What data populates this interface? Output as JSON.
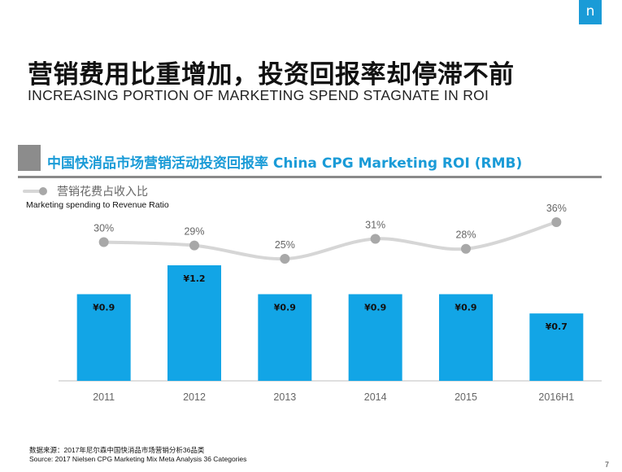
{
  "logo": {
    "letter": "n"
  },
  "title": {
    "cn": "营销费用比重增加，投资回报率却停滞不前",
    "en": "INCREASING PORTION OF MARKETING SPEND STAGNATE IN ROI"
  },
  "section": {
    "title": "中国快消品市场营销活动投资回报率  China CPG Marketing ROI (RMB)"
  },
  "legend": {
    "cn": "营销花费占收入比",
    "en": "Marketing spending to Revenue Ratio"
  },
  "chart_data": {
    "type": "bar",
    "title": "中国快消品市场营销活动投资回报率 China CPG Marketing ROI (RMB)",
    "categories": [
      "2011",
      "2012",
      "2013",
      "2014",
      "2015",
      "2016H1"
    ],
    "series": [
      {
        "name": "ROI (RMB)",
        "type": "bar",
        "values": [
          0.9,
          1.2,
          0.9,
          0.9,
          0.9,
          0.7
        ],
        "labels": [
          "¥0.9",
          "¥1.2",
          "¥0.9",
          "¥0.9",
          "¥0.9",
          "¥0.7"
        ],
        "color": "#12a5e6"
      },
      {
        "name": "Marketing spending to Revenue Ratio",
        "type": "line",
        "values": [
          30,
          29,
          25,
          31,
          28,
          36
        ],
        "labels": [
          "30%",
          "29%",
          "25%",
          "31%",
          "28%",
          "36%"
        ],
        "color": "#d6d6d6",
        "marker_color": "#a8a8a8"
      }
    ],
    "ylim_bar": [
      0,
      1.2
    ],
    "ylim_line": [
      20,
      40
    ],
    "xlabel": "",
    "ylabel": ""
  },
  "source": {
    "line1": "数据来源：2017年尼尔森中国快消品市场营销分析36品类",
    "line2": "Source: 2017 Nielsen CPG Marketing Mix Meta Analysis 36 Categories"
  },
  "page_number": "7"
}
